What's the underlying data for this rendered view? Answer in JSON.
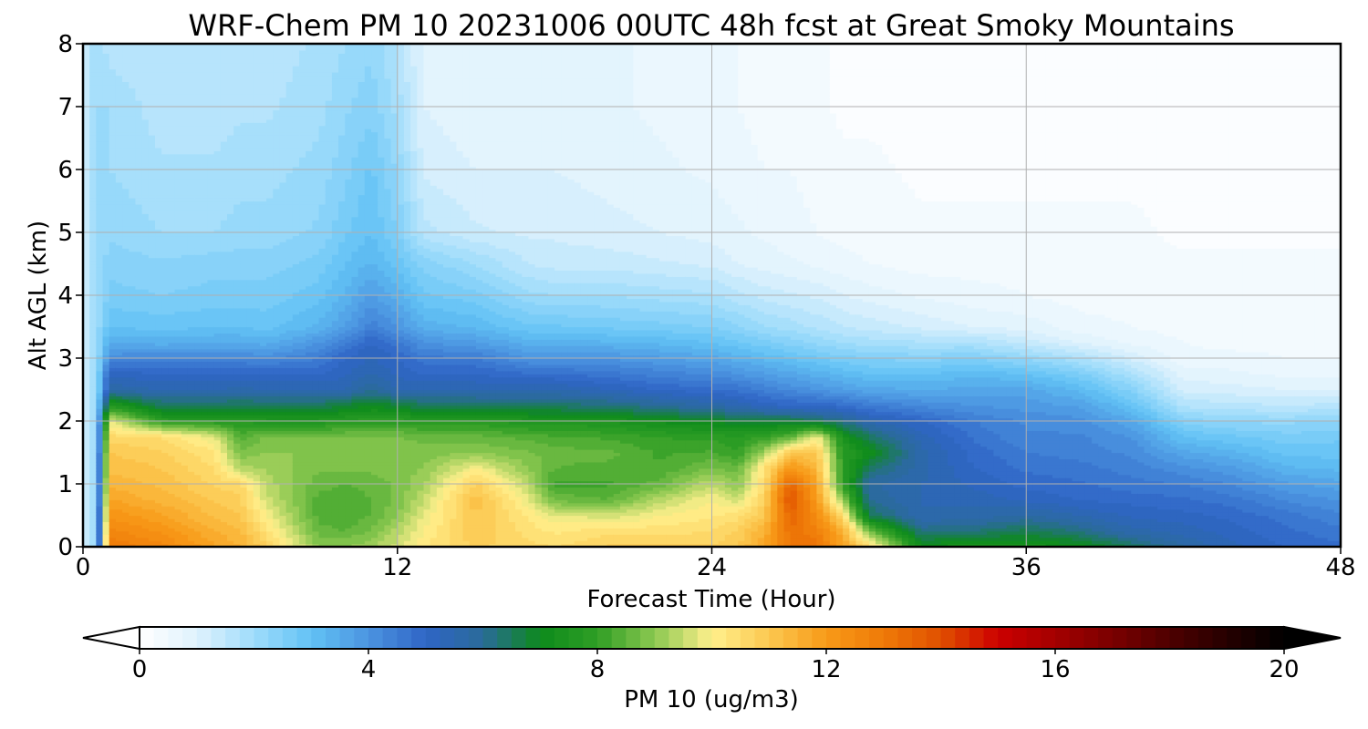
{
  "chart_data": {
    "type": "heatmap",
    "title": "WRF-Chem PM 10  20231006 00UTC 48h fcst at Great Smoky Mountains",
    "xlabel": "Forecast Time (Hour)",
    "ylabel": "Alt AGL (km)",
    "xlim": [
      0,
      48
    ],
    "ylim": [
      0,
      8
    ],
    "x_ticks": [
      "0",
      "12",
      "24",
      "36",
      "48"
    ],
    "y_ticks": [
      "0",
      "1",
      "2",
      "3",
      "4",
      "5",
      "6",
      "7",
      "8"
    ],
    "grid": true,
    "colorbar": {
      "label": "PM 10  (ug/m3)",
      "range": [
        0,
        20
      ],
      "extend": "both",
      "ticks": [
        "0",
        "4",
        "8",
        "12",
        "16",
        "20"
      ],
      "stops": [
        {
          "v": 0,
          "c": "#ffffff"
        },
        {
          "v": 1,
          "c": "#dff2fd"
        },
        {
          "v": 2,
          "c": "#9fdcfb"
        },
        {
          "v": 3,
          "c": "#62c2f5"
        },
        {
          "v": 4,
          "c": "#4b94e0"
        },
        {
          "v": 5,
          "c": "#2f65c6"
        },
        {
          "v": 6,
          "c": "#2a6b99"
        },
        {
          "v": 7,
          "c": "#0d8a1c"
        },
        {
          "v": 8,
          "c": "#2f9e25"
        },
        {
          "v": 9,
          "c": "#8cc850"
        },
        {
          "v": 10,
          "c": "#fff08c"
        },
        {
          "v": 11,
          "c": "#fbc850"
        },
        {
          "v": 12,
          "c": "#f89a18"
        },
        {
          "v": 13,
          "c": "#ef7a08"
        },
        {
          "v": 14,
          "c": "#e05000"
        },
        {
          "v": 15,
          "c": "#cc0000"
        },
        {
          "v": 16,
          "c": "#a40000"
        },
        {
          "v": 17,
          "c": "#7a0000"
        },
        {
          "v": 18,
          "c": "#4e0000"
        },
        {
          "v": 19,
          "c": "#260000"
        },
        {
          "v": 20,
          "c": "#000000"
        }
      ]
    },
    "times": [
      0,
      0.5,
      1,
      3,
      5,
      6,
      7,
      9,
      10,
      11,
      12,
      13,
      15,
      17,
      18,
      20,
      22,
      24,
      25,
      26,
      27,
      28,
      29,
      30,
      32,
      34,
      36,
      38,
      40,
      42,
      44,
      46,
      48
    ],
    "altitudes": [
      0,
      0.25,
      0.5,
      0.75,
      1,
      1.25,
      1.5,
      1.75,
      2,
      2.25,
      2.5,
      2.75,
      3,
      3.25,
      3.5,
      4,
      4.5,
      5,
      6,
      7,
      8
    ],
    "profiles": [
      [
        1.0,
        1.0,
        1.0,
        1.0,
        1.0,
        1.0,
        1.0,
        1.0,
        1.0,
        1.0,
        1.0,
        1.0,
        1.0,
        1.0,
        1.0,
        1.0,
        1.0,
        1.0,
        1.0,
        1.0,
        1.0
      ],
      [
        2.0,
        2.0,
        2.0,
        2.0,
        2.0,
        2.0,
        2.0,
        2.0,
        2.0,
        2.0,
        2.0,
        2.0,
        2.0,
        2.0,
        2.0,
        2.0,
        2.0,
        2.0,
        2.0,
        2.0,
        2.0
      ],
      [
        13,
        12.6,
        12.2,
        11.8,
        11.4,
        11.2,
        11.0,
        10.6,
        9.8,
        7.7,
        5.7,
        5.2,
        4.2,
        3.5,
        3.0,
        2.6,
        2.4,
        2.2,
        2.0,
        2.0,
        1.6
      ],
      [
        12.6,
        12.2,
        11.8,
        11.4,
        11.2,
        11.0,
        10.8,
        10.5,
        7.9,
        6.5,
        5.5,
        5.0,
        4.3,
        3.4,
        2.9,
        2.5,
        2.3,
        2.0,
        1.8,
        1.6,
        1.5
      ],
      [
        11.8,
        11.5,
        11.2,
        11.0,
        10.7,
        10.5,
        10.3,
        9.8,
        7.8,
        6.5,
        5.5,
        5.0,
        4.3,
        3.5,
        3.0,
        2.6,
        2.4,
        2.0,
        1.8,
        1.6,
        1.5
      ],
      [
        11.5,
        11.3,
        11.0,
        10.8,
        10.6,
        9.4,
        8.8,
        8.4,
        7.7,
        6.6,
        5.6,
        5.0,
        4.3,
        3.5,
        3.0,
        2.6,
        2.4,
        2.1,
        1.9,
        1.7,
        1.6
      ],
      [
        10.8,
        10.4,
        10.0,
        9.6,
        9.4,
        9.2,
        9.0,
        8.8,
        7.6,
        6.5,
        5.5,
        5.0,
        4.2,
        3.4,
        2.9,
        2.6,
        2.4,
        2.1,
        1.9,
        1.7,
        1.6
      ],
      [
        9.0,
        8.6,
        8.4,
        8.4,
        8.6,
        8.8,
        9.0,
        8.8,
        7.6,
        6.5,
        5.5,
        5.0,
        4.5,
        4.0,
        3.3,
        2.9,
        2.6,
        2.3,
        2.1,
        1.9,
        1.8
      ],
      [
        9.0,
        8.5,
        8.3,
        8.3,
        8.5,
        8.8,
        9.0,
        8.8,
        7.8,
        6.8,
        5.5,
        5.2,
        5.0,
        4.5,
        3.8,
        3.3,
        3.0,
        2.7,
        2.4,
        2.2,
        2.0
      ],
      [
        9.2,
        8.8,
        8.5,
        8.5,
        8.6,
        8.8,
        9.0,
        8.8,
        7.9,
        7.0,
        6.0,
        5.5,
        5.3,
        5.0,
        4.4,
        3.8,
        3.3,
        3.0,
        2.8,
        2.4,
        2.2
      ],
      [
        9.6,
        9.4,
        9.0,
        8.8,
        8.8,
        8.9,
        9.0,
        8.8,
        7.9,
        6.8,
        5.5,
        5.2,
        5.0,
        4.6,
        4.0,
        3.4,
        2.9,
        2.5,
        2.2,
        1.9,
        1.7
      ],
      [
        10.2,
        10.0,
        9.8,
        9.5,
        9.2,
        9.0,
        8.9,
        8.6,
        7.8,
        6.5,
        5.5,
        5.0,
        4.6,
        4.0,
        3.4,
        2.8,
        2.4,
        1.6,
        1.2,
        1.0,
        0.9
      ],
      [
        10.8,
        11.0,
        11.0,
        11.2,
        10.8,
        10.0,
        9.0,
        8.6,
        7.8,
        6.5,
        5.5,
        5.0,
        4.5,
        3.8,
        3.2,
        2.6,
        2.0,
        1.3,
        1.0,
        0.8,
        0.8
      ],
      [
        10.6,
        10.4,
        10.2,
        9.8,
        9.4,
        9.0,
        8.8,
        8.4,
        7.6,
        6.4,
        5.5,
        4.8,
        4.0,
        3.4,
        2.8,
        2.1,
        1.5,
        1.2,
        1.0,
        0.9,
        0.9
      ],
      [
        10.5,
        10.2,
        9.8,
        8.7,
        8.2,
        8.5,
        8.6,
        8.3,
        7.6,
        6.4,
        5.5,
        4.8,
        4.0,
        3.4,
        2.8,
        2.0,
        1.4,
        1.2,
        1.0,
        1.0,
        1.0
      ],
      [
        10.8,
        10.4,
        9.6,
        8.5,
        8.2,
        8.4,
        8.6,
        8.2,
        7.5,
        6.3,
        5.3,
        4.6,
        4.0,
        3.3,
        2.7,
        2.0,
        1.4,
        1.1,
        0.9,
        0.8,
        0.8
      ],
      [
        10.8,
        10.4,
        10.0,
        9.4,
        8.6,
        8.3,
        8.2,
        8.0,
        7.2,
        6.0,
        5.0,
        4.4,
        3.8,
        3.2,
        2.6,
        1.9,
        1.3,
        1.0,
        0.8,
        0.7,
        0.7
      ],
      [
        10.8,
        10.5,
        10.2,
        10.0,
        9.5,
        8.8,
        8.3,
        7.9,
        7.0,
        5.7,
        4.8,
        4.2,
        3.6,
        3.0,
        2.5,
        1.8,
        1.2,
        0.9,
        0.7,
        0.6,
        0.6
      ],
      [
        11.0,
        10.8,
        10.4,
        9.6,
        9.0,
        8.6,
        8.0,
        7.8,
        6.8,
        5.5,
        4.7,
        4.0,
        3.4,
        2.8,
        2.3,
        1.6,
        1.0,
        0.8,
        0.6,
        0.5,
        0.5
      ],
      [
        11.8,
        11.5,
        11.0,
        10.8,
        10.5,
        10.4,
        9.2,
        8.0,
        6.8,
        5.2,
        4.4,
        3.8,
        3.2,
        2.6,
        2.0,
        1.4,
        0.9,
        0.7,
        0.5,
        0.4,
        0.4
      ],
      [
        13.0,
        13.2,
        13.5,
        14.0,
        13.5,
        12.2,
        11.0,
        8.5,
        6.8,
        5.0,
        4.2,
        3.6,
        3.0,
        2.4,
        1.9,
        1.3,
        0.8,
        0.6,
        0.5,
        0.3,
        0.3
      ],
      [
        13.2,
        12.8,
        12.4,
        12.0,
        11.8,
        11.4,
        11.0,
        10.0,
        6.5,
        5.0,
        4.0,
        3.4,
        2.8,
        2.2,
        1.7,
        1.2,
        0.7,
        0.5,
        0.4,
        0.3,
        0.3
      ],
      [
        11.8,
        11.5,
        10.5,
        9.0,
        8.0,
        7.9,
        7.8,
        7.4,
        6.2,
        4.8,
        3.8,
        3.2,
        2.6,
        2.0,
        1.5,
        1.0,
        0.6,
        0.4,
        0.3,
        0.2,
        0.2
      ],
      [
        10.6,
        8.8,
        6.6,
        6.0,
        5.8,
        6.4,
        7.2,
        6.5,
        5.5,
        4.5,
        3.6,
        3.0,
        2.5,
        1.9,
        1.4,
        0.9,
        0.5,
        0.4,
        0.3,
        0.2,
        0.2
      ],
      [
        7.2,
        6.2,
        5.5,
        5.5,
        5.5,
        5.6,
        5.6,
        5.4,
        5.0,
        4.2,
        3.5,
        3.0,
        2.4,
        1.8,
        1.2,
        0.7,
        0.4,
        0.3,
        0.2,
        0.2,
        0.2
      ],
      [
        7.5,
        6.3,
        5.6,
        5.4,
        5.2,
        5.0,
        4.9,
        4.7,
        4.5,
        4.0,
        3.6,
        3.2,
        2.5,
        1.8,
        1.0,
        0.6,
        0.4,
        0.3,
        0.2,
        0.2,
        0.2
      ],
      [
        7.4,
        6.6,
        5.8,
        5.2,
        4.9,
        4.7,
        4.5,
        4.3,
        4.2,
        3.9,
        3.6,
        3.0,
        2.2,
        1.4,
        0.9,
        0.5,
        0.4,
        0.3,
        0.2,
        0.2,
        0.2
      ],
      [
        7.2,
        6.2,
        5.5,
        5.0,
        4.8,
        4.6,
        4.4,
        4.3,
        4.1,
        3.7,
        3.2,
        2.6,
        1.8,
        1.0,
        0.6,
        0.4,
        0.3,
        0.3,
        0.2,
        0.2,
        0.2
      ],
      [
        6.5,
        5.6,
        5.2,
        4.9,
        4.6,
        4.4,
        4.2,
        4.0,
        3.6,
        3.0,
        2.4,
        1.8,
        1.2,
        0.7,
        0.5,
        0.4,
        0.3,
        0.3,
        0.2,
        0.2,
        0.2
      ],
      [
        5.8,
        5.4,
        5.1,
        4.8,
        4.5,
        4.1,
        3.6,
        3.0,
        2.4,
        1.7,
        1.2,
        0.9,
        0.6,
        0.5,
        0.4,
        0.3,
        0.3,
        0.2,
        0.2,
        0.2,
        0.2
      ],
      [
        5.3,
        5.1,
        4.9,
        4.6,
        4.2,
        3.8,
        3.3,
        2.8,
        2.2,
        1.6,
        1.1,
        0.8,
        0.6,
        0.4,
        0.3,
        0.3,
        0.3,
        0.2,
        0.2,
        0.2,
        0.2
      ],
      [
        5.0,
        4.8,
        4.6,
        4.2,
        3.8,
        3.3,
        2.9,
        2.6,
        2.2,
        1.5,
        1.0,
        0.7,
        0.5,
        0.4,
        0.3,
        0.3,
        0.3,
        0.2,
        0.2,
        0.2,
        0.2
      ],
      [
        4.8,
        4.6,
        4.3,
        4.0,
        3.6,
        3.2,
        2.9,
        2.7,
        2.3,
        1.6,
        1.0,
        0.7,
        0.5,
        0.4,
        0.3,
        0.3,
        0.3,
        0.2,
        0.2,
        0.2,
        0.2
      ]
    ]
  }
}
